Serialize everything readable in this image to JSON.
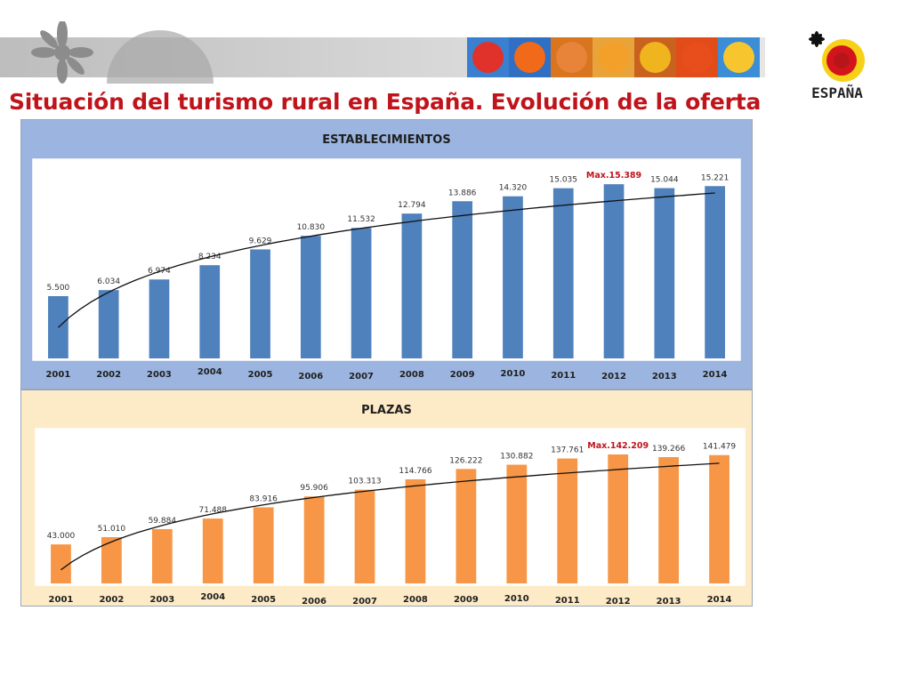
{
  "header": {
    "title": "Situación del turismo rural en España. Evolución de la oferta",
    "logo_text": "ESPAÑA",
    "tile_colors": [
      "#e0322b",
      "#f06a1a",
      "#e8833a",
      "#f3a02a",
      "#f0b41e",
      "#e84d1c",
      "#f7c62f"
    ]
  },
  "chart_data": [
    {
      "type": "bar",
      "title": "ESTABLECIMIENTOS",
      "categories": [
        "2001",
        "2002",
        "2003",
        "2004",
        "2005",
        "2006",
        "2007",
        "2008",
        "2009",
        "2010",
        "2011",
        "2012",
        "2013",
        "2014"
      ],
      "values": [
        5500,
        6034,
        6974,
        8234,
        9629,
        10830,
        11532,
        12794,
        13886,
        14320,
        15035,
        15389,
        15044,
        15221
      ],
      "value_labels": [
        "5.500",
        "6.034",
        "6.974",
        "8.234",
        "9.629",
        "10.830",
        "11.532",
        "12.794",
        "13.886",
        "14.320",
        "15.035",
        "Max.15.389",
        "15.044",
        "15.221"
      ],
      "max_index": 11,
      "ylim": [
        0,
        16500
      ],
      "trendline": true,
      "bar_color": "#4f81bd",
      "max_label_color": "#c0141c",
      "panel_bg": "#9bb5e0"
    },
    {
      "type": "bar",
      "title": "PLAZAS",
      "categories": [
        "2001",
        "2002",
        "2003",
        "2004",
        "2005",
        "2006",
        "2007",
        "2008",
        "2009",
        "2010",
        "2011",
        "2012",
        "2013",
        "2014"
      ],
      "values": [
        43000,
        51010,
        59884,
        71488,
        83916,
        95906,
        103313,
        114766,
        126222,
        130882,
        137761,
        142209,
        139266,
        141479
      ],
      "value_labels": [
        "43.000",
        "51.010",
        "59.884",
        "71.488",
        "83.916",
        "95.906",
        "103.313",
        "114.766",
        "126.222",
        "130.882",
        "137.761",
        "Max.142.209",
        "139.266",
        "141.479"
      ],
      "max_index": 11,
      "ylim": [
        0,
        153000
      ],
      "trendline": true,
      "bar_color": "#f79646",
      "max_label_color": "#c0141c",
      "panel_bg": "#fdebc8"
    }
  ]
}
